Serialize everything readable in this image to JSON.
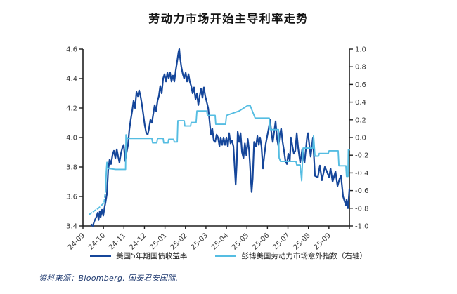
{
  "header": {
    "title": "劳动力市场开始主导利率走势"
  },
  "footer": {
    "source_label": "资料来源：Bloomberg, 国泰君安国际."
  },
  "legend": [
    {
      "label": "美国5年期国债收益率",
      "color": "#15469a"
    },
    {
      "label": "彭博美国劳动力市场意外指数（右轴）",
      "color": "#55bde2"
    }
  ],
  "colors": {
    "axis": "#1f1f1f",
    "tick_text": "#3a3a3a",
    "background": "#ffffff"
  },
  "chart_data": {
    "type": "line",
    "title": "劳动力市场开始主导利率走势",
    "x_tick_labels": [
      "24-09",
      "24-10",
      "24-11",
      "24-12",
      "25-01",
      "25-02",
      "25-03",
      "25-04",
      "25-05",
      "25-06",
      "25-07",
      "25-08",
      "25-09"
    ],
    "x_domain": [
      0,
      13
    ],
    "left_axis": {
      "min": 3.4,
      "max": 4.6,
      "step": 0.2,
      "label_format": "0.1f"
    },
    "right_axis": {
      "min": -1.0,
      "max": 1.0,
      "step": 0.2,
      "label_format": "0.1f"
    },
    "grid": false,
    "legend_position": "bottom-center",
    "series": [
      {
        "name": "美国5年期国债收益率",
        "axis": "left",
        "color": "#15469a",
        "width": 2.2,
        "points": [
          [
            0.41,
            3.41
          ],
          [
            0.48,
            3.38
          ],
          [
            0.55,
            3.43
          ],
          [
            0.65,
            3.46
          ],
          [
            0.72,
            3.49
          ],
          [
            0.76,
            3.44
          ],
          [
            0.82,
            3.5
          ],
          [
            0.86,
            3.46
          ],
          [
            0.93,
            3.51
          ],
          [
            0.99,
            3.47
          ],
          [
            1.06,
            3.53
          ],
          [
            1.1,
            3.56
          ],
          [
            1.17,
            3.62
          ],
          [
            1.23,
            3.78
          ],
          [
            1.3,
            3.85
          ],
          [
            1.37,
            3.82
          ],
          [
            1.44,
            3.88
          ],
          [
            1.51,
            3.91
          ],
          [
            1.58,
            3.86
          ],
          [
            1.65,
            3.92
          ],
          [
            1.72,
            3.87
          ],
          [
            1.78,
            3.83
          ],
          [
            1.85,
            3.89
          ],
          [
            1.92,
            3.93
          ],
          [
            1.99,
            3.95
          ],
          [
            2.06,
            3.84
          ],
          [
            2.13,
            3.9
          ],
          [
            2.2,
            3.95
          ],
          [
            2.26,
            4.05
          ],
          [
            2.33,
            4.12
          ],
          [
            2.4,
            4.18
          ],
          [
            2.47,
            4.25
          ],
          [
            2.54,
            4.2
          ],
          [
            2.61,
            4.31
          ],
          [
            2.68,
            4.28
          ],
          [
            2.74,
            4.32
          ],
          [
            2.81,
            4.28
          ],
          [
            2.88,
            4.22
          ],
          [
            2.95,
            4.15
          ],
          [
            3.02,
            4.08
          ],
          [
            3.09,
            4.03
          ],
          [
            3.16,
            4.02
          ],
          [
            3.22,
            4.06
          ],
          [
            3.29,
            4.12
          ],
          [
            3.36,
            4.1
          ],
          [
            3.43,
            4.16
          ],
          [
            3.5,
            4.22
          ],
          [
            3.57,
            4.18
          ],
          [
            3.64,
            4.25
          ],
          [
            3.7,
            4.28
          ],
          [
            3.77,
            4.35
          ],
          [
            3.84,
            4.3
          ],
          [
            3.91,
            4.4
          ],
          [
            3.98,
            4.43
          ],
          [
            4.05,
            4.38
          ],
          [
            4.12,
            4.44
          ],
          [
            4.18,
            4.4
          ],
          [
            4.25,
            4.44
          ],
          [
            4.32,
            4.38
          ],
          [
            4.39,
            4.42
          ],
          [
            4.46,
            4.38
          ],
          [
            4.53,
            4.46
          ],
          [
            4.6,
            4.52
          ],
          [
            4.66,
            4.58
          ],
          [
            4.7,
            4.6
          ],
          [
            4.73,
            4.55
          ],
          [
            4.8,
            4.48
          ],
          [
            4.87,
            4.43
          ],
          [
            4.94,
            4.4
          ],
          [
            5.01,
            4.44
          ],
          [
            5.08,
            4.38
          ],
          [
            5.15,
            4.43
          ],
          [
            5.21,
            4.38
          ],
          [
            5.28,
            4.35
          ],
          [
            5.35,
            4.3
          ],
          [
            5.42,
            4.34
          ],
          [
            5.49,
            4.26
          ],
          [
            5.56,
            4.3
          ],
          [
            5.63,
            4.22
          ],
          [
            5.69,
            4.28
          ],
          [
            5.76,
            4.33
          ],
          [
            5.83,
            4.27
          ],
          [
            5.9,
            4.34
          ],
          [
            5.97,
            4.28
          ],
          [
            6.04,
            4.24
          ],
          [
            6.11,
            4.2
          ],
          [
            6.17,
            4.12
          ],
          [
            6.24,
            4.02
          ],
          [
            6.31,
            4.06
          ],
          [
            6.38,
            3.98
          ],
          [
            6.45,
            3.97
          ],
          [
            6.52,
            4.02
          ],
          [
            6.59,
            4.0
          ],
          [
            6.66,
            3.94
          ],
          [
            6.72,
            4.0
          ],
          [
            6.79,
            3.95
          ],
          [
            6.86,
            4.0
          ],
          [
            6.93,
            3.95
          ],
          [
            7.0,
            4.0
          ],
          [
            7.07,
            3.94
          ],
          [
            7.13,
            4.03
          ],
          [
            7.2,
            3.96
          ],
          [
            7.27,
            3.98
          ],
          [
            7.34,
            3.94
          ],
          [
            7.41,
            3.78
          ],
          [
            7.45,
            3.68
          ],
          [
            7.5,
            3.82
          ],
          [
            7.55,
            4.04
          ],
          [
            7.62,
            3.97
          ],
          [
            7.69,
            4.03
          ],
          [
            7.76,
            3.9
          ],
          [
            7.83,
            3.86
          ],
          [
            7.9,
            3.96
          ],
          [
            7.97,
            3.88
          ],
          [
            8.04,
            3.99
          ],
          [
            8.11,
            3.91
          ],
          [
            8.18,
            3.74
          ],
          [
            8.23,
            3.63
          ],
          [
            8.28,
            3.72
          ],
          [
            8.35,
            3.97
          ],
          [
            8.44,
            3.94
          ],
          [
            8.51,
            4.01
          ],
          [
            8.58,
            3.95
          ],
          [
            8.64,
            4.0
          ],
          [
            8.71,
            3.94
          ],
          [
            8.78,
            3.79
          ],
          [
            8.85,
            3.88
          ],
          [
            8.92,
            3.96
          ],
          [
            8.99,
            4.01
          ],
          [
            9.06,
            4.06
          ],
          [
            9.13,
            4.12
          ],
          [
            9.19,
            4.04
          ],
          [
            9.26,
            3.97
          ],
          [
            9.33,
            4.04
          ],
          [
            9.4,
            4.11
          ],
          [
            9.47,
            3.99
          ],
          [
            9.54,
            3.94
          ],
          [
            9.6,
            4.02
          ],
          [
            9.67,
            4.06
          ],
          [
            9.74,
            3.97
          ],
          [
            9.81,
            3.91
          ],
          [
            9.88,
            3.84
          ],
          [
            9.95,
            3.82
          ],
          [
            10.02,
            3.89
          ],
          [
            10.09,
            3.84
          ],
          [
            10.15,
            4.0
          ],
          [
            10.22,
            3.94
          ],
          [
            10.29,
            3.89
          ],
          [
            10.36,
            3.91
          ],
          [
            10.43,
            4.03
          ],
          [
            10.5,
            3.93
          ],
          [
            10.6,
            3.83
          ],
          [
            10.7,
            3.92
          ],
          [
            10.81,
            3.83
          ],
          [
            10.94,
            4.01
          ],
          [
            10.98,
            4.03
          ],
          [
            11.11,
            3.87
          ],
          [
            11.22,
            4.0
          ],
          [
            11.32,
            3.74
          ],
          [
            11.46,
            3.73
          ],
          [
            11.56,
            3.81
          ],
          [
            11.66,
            3.71
          ],
          [
            11.8,
            3.8
          ],
          [
            11.9,
            3.77
          ],
          [
            12.01,
            3.73
          ],
          [
            12.08,
            3.79
          ],
          [
            12.18,
            3.7
          ],
          [
            12.32,
            3.77
          ],
          [
            12.42,
            3.67
          ],
          [
            12.52,
            3.72
          ],
          [
            12.59,
            3.74
          ],
          [
            12.69,
            3.6
          ],
          [
            12.83,
            3.54
          ],
          [
            12.86,
            3.58
          ],
          [
            12.93,
            3.52
          ],
          [
            13.0,
            3.65
          ]
        ]
      },
      {
        "name": "彭博美国劳动力市场意外指数（右轴）",
        "axis": "right",
        "color": "#55bde2",
        "width": 1.9,
        "dash_head_until": 1.03,
        "points": [
          [
            0.31,
            -0.87
          ],
          [
            0.55,
            -0.83
          ],
          [
            0.75,
            -0.8
          ],
          [
            0.89,
            -0.77
          ],
          [
            1.03,
            -0.74
          ],
          [
            1.1,
            -0.6
          ],
          [
            1.14,
            -0.38
          ],
          [
            1.17,
            -0.28
          ],
          [
            1.22,
            -0.35
          ],
          [
            1.6,
            -0.36
          ],
          [
            2.06,
            -0.36
          ],
          [
            2.08,
            -0.36
          ],
          [
            2.1,
            0.03
          ],
          [
            2.16,
            -0.01
          ],
          [
            3.36,
            -0.01
          ],
          [
            3.4,
            -0.06
          ],
          [
            3.6,
            -0.06
          ],
          [
            3.64,
            -0.01
          ],
          [
            3.91,
            -0.01
          ],
          [
            3.94,
            -0.06
          ],
          [
            4.15,
            -0.06
          ],
          [
            4.18,
            -0.02
          ],
          [
            4.42,
            -0.02
          ],
          [
            4.46,
            -0.05
          ],
          [
            4.6,
            -0.05
          ],
          [
            4.63,
            0.19
          ],
          [
            4.94,
            0.19
          ],
          [
            4.97,
            0.13
          ],
          [
            5.25,
            0.13
          ],
          [
            5.28,
            0.17
          ],
          [
            5.52,
            0.17
          ],
          [
            5.56,
            0.3
          ],
          [
            6.04,
            0.3
          ],
          [
            6.07,
            0.25
          ],
          [
            6.45,
            0.25
          ],
          [
            6.48,
            0.15
          ],
          [
            6.96,
            0.15
          ],
          [
            7.0,
            0.25
          ],
          [
            7.62,
            0.3
          ],
          [
            8.03,
            0.36
          ],
          [
            8.16,
            0.36
          ],
          [
            8.4,
            0.22
          ],
          [
            9.09,
            0.22
          ],
          [
            9.13,
            0.09
          ],
          [
            9.54,
            0.09
          ],
          [
            9.57,
            -0.23
          ],
          [
            9.64,
            -0.27
          ],
          [
            10.39,
            -0.27
          ],
          [
            10.43,
            -0.31
          ],
          [
            10.6,
            -0.31
          ],
          [
            10.67,
            -0.49
          ],
          [
            10.74,
            -0.12
          ],
          [
            11.18,
            -0.12
          ],
          [
            11.22,
            -0.12
          ],
          [
            11.25,
            0.02
          ],
          [
            11.32,
            -0.21
          ],
          [
            11.49,
            -0.21
          ],
          [
            11.53,
            -0.18
          ],
          [
            11.97,
            -0.18
          ],
          [
            12.01,
            -0.15
          ],
          [
            12.45,
            -0.15
          ],
          [
            12.49,
            -0.32
          ],
          [
            12.83,
            -0.32
          ],
          [
            12.86,
            -0.44
          ],
          [
            12.93,
            -0.44
          ],
          [
            12.95,
            -0.14
          ],
          [
            13.0,
            -0.14
          ]
        ]
      }
    ]
  }
}
